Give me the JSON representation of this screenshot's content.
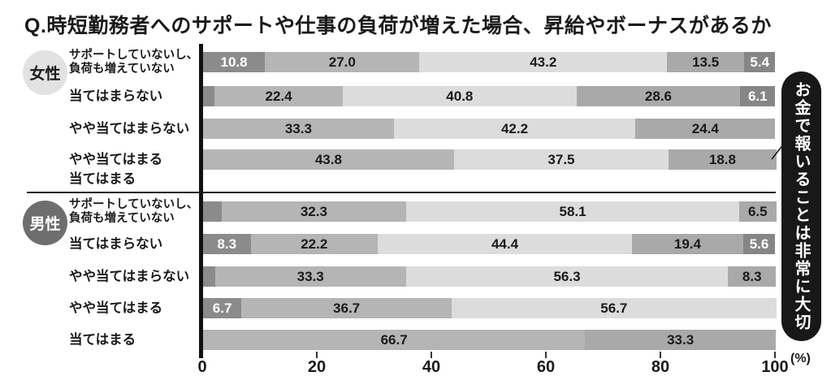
{
  "title": "Q.時短勤務者へのサポートや仕事の負荷が増えた場合、昇給やボーナスがあるか",
  "axis": {
    "ticks": [
      "0",
      "20",
      "40",
      "60",
      "80",
      "100"
    ],
    "unit": "(%)"
  },
  "colors": {
    "axis_line": "#111111",
    "female_badge_bg": "#e2e2e2",
    "female_badge_text": "#1a1a1a",
    "male_badge_bg": "#6e6e6e",
    "male_badge_text": "#ffffff",
    "note_bg": "#181818",
    "note_text": "#ffffff"
  },
  "chart_data": {
    "type": "bar",
    "stacked": true,
    "orientation": "horizontal",
    "xlim": [
      0,
      100
    ],
    "x_ticks": [
      0,
      20,
      40,
      60,
      80,
      100
    ],
    "value_unit": "%",
    "series_colors": [
      "#8b8b8b",
      "#b5b5b5",
      "#dcdcdc",
      "#a9a9a9",
      "#868686"
    ],
    "annotation": "お金で報いることは非常に大切",
    "groups": [
      {
        "name": "女性",
        "rows": [
          {
            "label": "サポートしていないし、\n負荷も増えていない",
            "segments": [
              {
                "series": 1,
                "value": 10.8,
                "label": "10.8"
              },
              {
                "series": 2,
                "value": 27.0,
                "label": "27.0"
              },
              {
                "series": 3,
                "value": 43.2,
                "label": "43.2"
              },
              {
                "series": 4,
                "value": 13.5,
                "label": "13.5"
              },
              {
                "series": 5,
                "value": 5.4,
                "label": "5.4"
              }
            ]
          },
          {
            "label": "当てはまらない",
            "segments": [
              {
                "series": 1,
                "value": 2.0,
                "label": "2.0"
              },
              {
                "series": 2,
                "value": 22.4,
                "label": "22.4"
              },
              {
                "series": 3,
                "value": 40.8,
                "label": "40.8"
              },
              {
                "series": 4,
                "value": 28.6,
                "label": "28.6"
              },
              {
                "series": 5,
                "value": 6.1,
                "label": "6.1"
              }
            ]
          },
          {
            "label": "やや当てはまらない",
            "segments": [
              {
                "series": 2,
                "value": 33.3,
                "label": "33.3"
              },
              {
                "series": 3,
                "value": 42.2,
                "label": "42.2"
              },
              {
                "series": 4,
                "value": 24.4,
                "label": "24.4"
              }
            ]
          },
          {
            "label": "やや当てはまる",
            "segments": [
              {
                "series": 2,
                "value": 43.8,
                "label": "43.8"
              },
              {
                "series": 3,
                "value": 37.5,
                "label": "37.5"
              },
              {
                "series": 4,
                "value": 18.8,
                "label": "18.8"
              }
            ]
          },
          {
            "label": "当てはまる",
            "segments": []
          }
        ]
      },
      {
        "name": "男性",
        "rows": [
          {
            "label": "サポートしていないし、\n負荷も増えていない",
            "segments": [
              {
                "series": 1,
                "value": 3.2,
                "label": "3.2"
              },
              {
                "series": 2,
                "value": 32.3,
                "label": "32.3"
              },
              {
                "series": 3,
                "value": 58.1,
                "label": "58.1"
              },
              {
                "series": 4,
                "value": 6.5,
                "label": "6.5"
              }
            ]
          },
          {
            "label": "当てはまらない",
            "segments": [
              {
                "series": 1,
                "value": 8.3,
                "label": "8.3"
              },
              {
                "series": 2,
                "value": 22.2,
                "label": "22.2"
              },
              {
                "series": 3,
                "value": 44.4,
                "label": "44.4"
              },
              {
                "series": 4,
                "value": 19.4,
                "label": "19.4"
              },
              {
                "series": 5,
                "value": 5.6,
                "label": "5.6"
              }
            ]
          },
          {
            "label": "やや当てはまらない",
            "segments": [
              {
                "series": 1,
                "value": 2.1,
                "label": "2.1"
              },
              {
                "series": 2,
                "value": 33.3,
                "label": "33.3"
              },
              {
                "series": 3,
                "value": 56.3,
                "label": "56.3"
              },
              {
                "series": 4,
                "value": 8.3,
                "label": "8.3"
              }
            ]
          },
          {
            "label": "やや当てはまる",
            "segments": [
              {
                "series": 1,
                "value": 6.7,
                "label": "6.7"
              },
              {
                "series": 2,
                "value": 36.7,
                "label": "36.7"
              },
              {
                "series": 3,
                "value": 56.7,
                "label": "56.7"
              }
            ]
          },
          {
            "label": "当てはまる",
            "segments": [
              {
                "series": 2,
                "value": 66.7,
                "label": "66.7"
              },
              {
                "series": 4,
                "value": 33.3,
                "label": "33.3"
              }
            ]
          }
        ]
      }
    ]
  }
}
